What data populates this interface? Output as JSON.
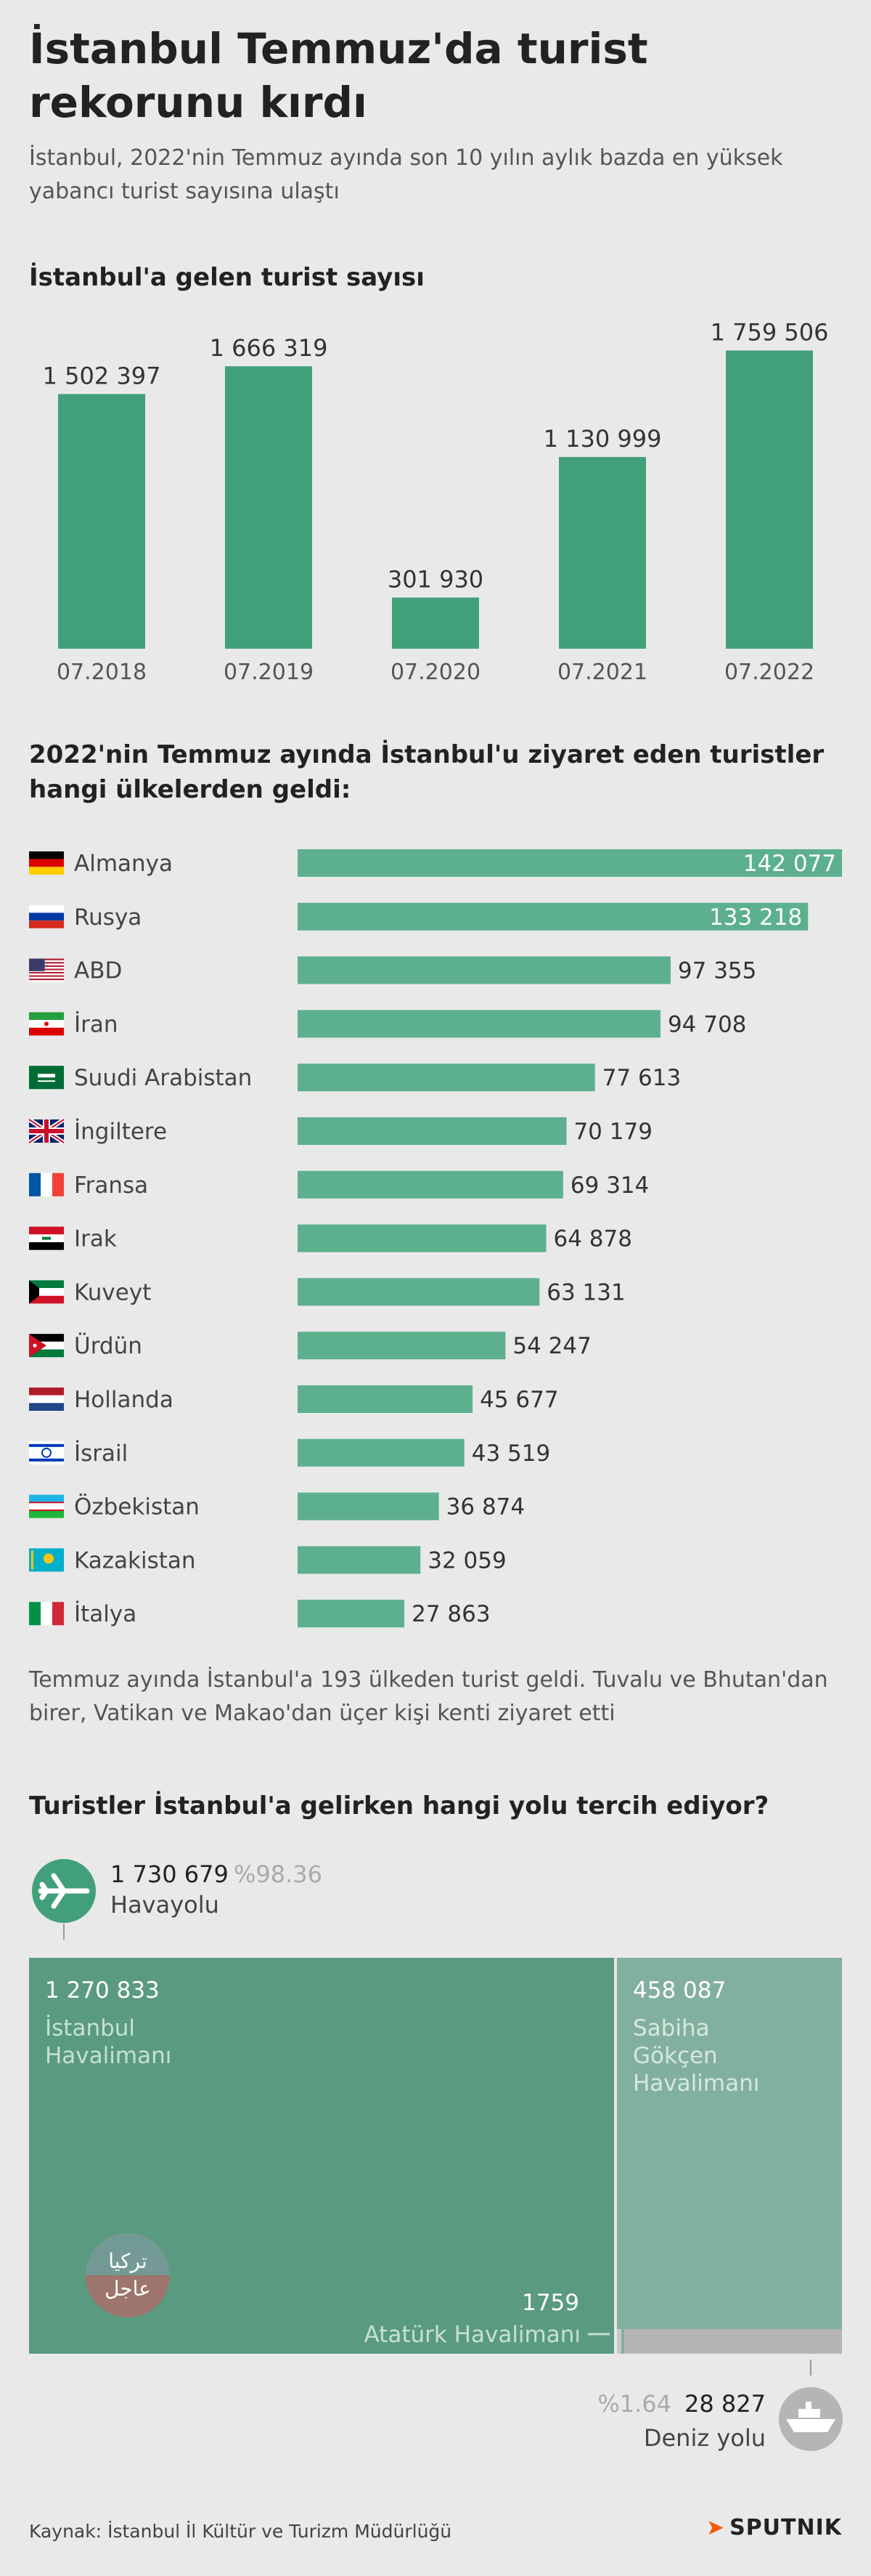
{
  "title": "İstanbul Temmuz'da turist rekorunu kırdı",
  "subtitle": "İstanbul, 2022'nin Temmuz ayında son 10 yılın aylık bazda en yüksek yabancı turist sayısına ulaştı",
  "colors": {
    "bar": "#41a079",
    "hbar": "#5db08e",
    "tree_main": "#5a9a80",
    "tree_side": "#82b09e",
    "tree_small": "#b5b5b5",
    "brand_orange": "#f25c05"
  },
  "chart_data": [
    {
      "type": "bar",
      "title": "İstanbul'a gelen turist sayısı",
      "categories": [
        "07.2018",
        "07.2019",
        "07.2020",
        "07.2021",
        "07.2022"
      ],
      "values": [
        1502397,
        1666319,
        301930,
        1130999,
        1759506
      ],
      "labels": [
        "1 502 397",
        "1 666 319",
        "301 930",
        "1 130 999",
        "1 759 506"
      ],
      "ylim": [
        0,
        1800000
      ],
      "xlabel": "",
      "ylabel": ""
    },
    {
      "type": "bar",
      "orientation": "horizontal",
      "title": "2022'nin Temmuz ayında İstanbul'u ziyaret eden turistler hangi ülkelerden geldi:",
      "categories": [
        "Almanya",
        "Rusya",
        "ABD",
        "İran",
        "Suudi Arabistan",
        "İngiltere",
        "Fransa",
        "Irak",
        "Kuveyt",
        "Ürdün",
        "Hollanda",
        "İsrail",
        "Özbekistan",
        "Kazakistan",
        "İtalya"
      ],
      "flags": [
        "flag-germany",
        "flag-russia",
        "flag-usa",
        "flag-iran",
        "flag-saudi-arabia",
        "flag-uk",
        "flag-france",
        "flag-iraq",
        "flag-kuwait",
        "flag-jordan",
        "flag-netherlands",
        "flag-israel",
        "flag-uzbekistan",
        "flag-kazakhstan",
        "flag-italy"
      ],
      "values": [
        142077,
        133218,
        97355,
        94708,
        77613,
        70179,
        69314,
        64878,
        63131,
        54247,
        45677,
        43519,
        36874,
        32059,
        27863
      ],
      "labels": [
        "142 077",
        "133 218",
        "97 355",
        "94 708",
        "77 613",
        "70 179",
        "69 314",
        "64 878",
        "63 131",
        "54 247",
        "45 677",
        "43 519",
        "36 874",
        "32 059",
        "27 863"
      ],
      "xlim": [
        0,
        142077
      ]
    },
    {
      "type": "treemap",
      "title": "Turistler İstanbul'a gelirken hangi yolu tercih ediyor?",
      "air": {
        "value": "1 730 679",
        "percent": "%98.36",
        "label": "Havayolu"
      },
      "sea": {
        "value": "28 827",
        "percent": "%1.64",
        "label": "Deniz yolu"
      },
      "airports": [
        {
          "name": "İstanbul Havalimanı",
          "value": 1270833,
          "label": "1 270 833",
          "line1": "İstanbul",
          "line2": "Havalimanı"
        },
        {
          "name": "Sabiha Gökçen Havalimanı",
          "value": 458087,
          "label": "458 087",
          "line1": "Sabiha",
          "line2": "Gökçen",
          "line3": "Havalimanı"
        },
        {
          "name": "Atatürk Havalimanı",
          "value": 1759,
          "label": "1759"
        }
      ]
    }
  ],
  "note": "Temmuz ayında İstanbul'a 193 ülkeden turist geldi. Tuvalu ve Bhutan'dan birer, Vatikan ve Makao'dan üçer kişi kenti ziyaret etti",
  "watermark": {
    "line1": "تركيا",
    "line2": "عاجل"
  },
  "source": "Kaynak: İstanbul İl Kültür ve Turizm Müdürlüğü",
  "brand": "SPUTNIK",
  "icons": {
    "air": "airplane-icon",
    "sea": "ship-icon",
    "brand": "sputnik-arrow-icon"
  }
}
